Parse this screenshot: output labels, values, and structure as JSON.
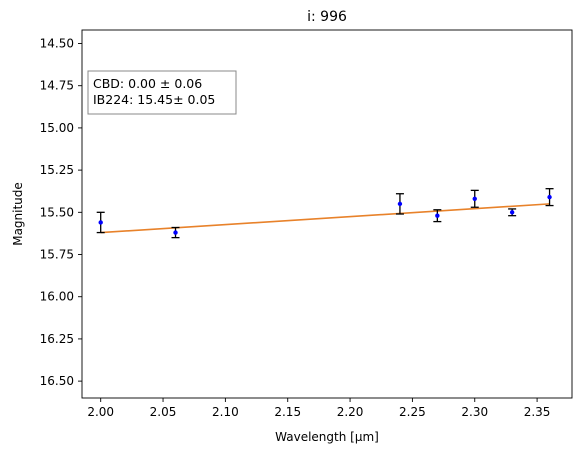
{
  "chart_data": {
    "type": "scatter",
    "title": "i: 996",
    "xlabel": "Wavelength [µm]",
    "ylabel": "Magnitude",
    "xlim": [
      1.985,
      2.378
    ],
    "ylim": [
      16.6,
      14.42
    ],
    "y_inverted": true,
    "grid": false,
    "x_ticks": [
      "2.00",
      "2.05",
      "2.10",
      "2.15",
      "2.20",
      "2.25",
      "2.30",
      "2.35"
    ],
    "y_ticks": [
      "14.50",
      "14.75",
      "15.00",
      "15.25",
      "15.50",
      "15.75",
      "16.00",
      "16.25",
      "16.50"
    ],
    "points": [
      {
        "x": 2.0,
        "y": 15.56,
        "err": 0.06
      },
      {
        "x": 2.06,
        "y": 15.62,
        "err": 0.03
      },
      {
        "x": 2.24,
        "y": 15.45,
        "err": 0.06
      },
      {
        "x": 2.27,
        "y": 15.52,
        "err": 0.035
      },
      {
        "x": 2.3,
        "y": 15.42,
        "err": 0.05
      },
      {
        "x": 2.33,
        "y": 15.5,
        "err": 0.02
      },
      {
        "x": 2.36,
        "y": 15.41,
        "err": 0.05
      }
    ],
    "fit_line": {
      "x": [
        2.0,
        2.36
      ],
      "y": [
        15.62,
        15.45
      ]
    },
    "colors": {
      "points": "#0000ff",
      "errorbars": "#000000",
      "fit": "#e8822a"
    },
    "annotation": {
      "lines": [
        "CBD: 0.00 ± 0.06",
        "IB224: 15.45± 0.05"
      ],
      "placement": "top-left"
    }
  }
}
